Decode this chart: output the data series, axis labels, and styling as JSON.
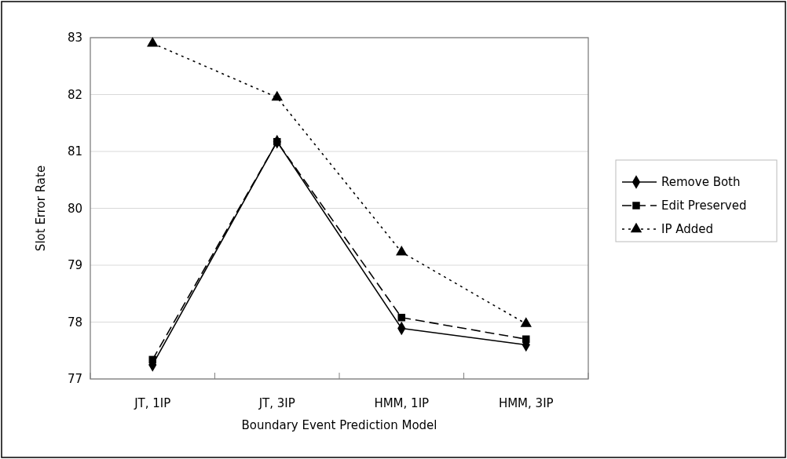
{
  "chart_data": {
    "type": "line",
    "xlabel": "Boundary Event Prediction Model",
    "ylabel": "Slot Error Rate",
    "categories": [
      "JT, 1IP",
      "JT, 3IP",
      "HMM, 1IP",
      "HMM, 3IP"
    ],
    "series": [
      {
        "name": "Remove Both",
        "color": "#000000",
        "values": [
          77.25,
          81.17,
          77.89,
          77.6
        ],
        "marker": "diamond",
        "line_style": "solid"
      },
      {
        "name": "Edit Preserved",
        "color": "#000000",
        "values": [
          77.34,
          81.17,
          78.08,
          77.7
        ],
        "marker": "square",
        "line_style": "dashed"
      },
      {
        "name": "IP Added",
        "color": "#000000",
        "values": [
          82.9,
          81.95,
          79.23,
          77.97
        ],
        "marker": "triangle",
        "line_style": "dotted"
      }
    ],
    "ylim": [
      77,
      83
    ],
    "yticks": [
      77,
      78,
      79,
      80,
      81,
      82,
      83
    ],
    "grid": "y",
    "legend": "right"
  }
}
